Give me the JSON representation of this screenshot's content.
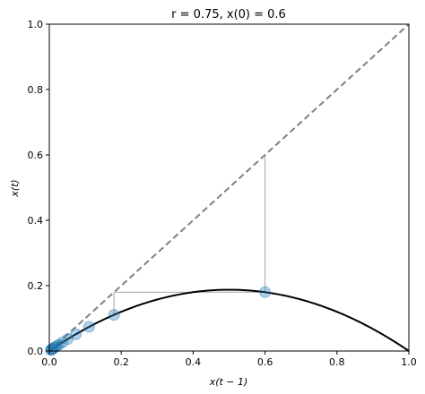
{
  "chart_data": {
    "type": "line",
    "title": "r = 0.75, x(0) = 0.6",
    "xlabel": "x(t − 1)",
    "ylabel": "x(t)",
    "xlim": [
      0,
      1
    ],
    "ylim": [
      0,
      1
    ],
    "x_ticks": [
      "0.0",
      "0.2",
      "0.4",
      "0.6",
      "0.8",
      "1.0"
    ],
    "y_ticks": [
      "0.0",
      "0.2",
      "0.4",
      "0.6",
      "0.8",
      "1.0"
    ],
    "x0": 0.6,
    "r": 0.75,
    "series": [
      {
        "type": "line",
        "style": "dashed",
        "color": "#808080",
        "x": [
          0,
          1
        ],
        "y": [
          0,
          1
        ]
      },
      {
        "type": "line",
        "style": "solid",
        "color": "#000000",
        "function": "r*x*(1-x)",
        "x_range": [
          0,
          1
        ]
      },
      {
        "type": "scatter",
        "color": "#1f77b4",
        "x": [
          0.6,
          0.18,
          0.1107,
          0.0739,
          0.0513,
          0.0365,
          0.0264,
          0.0193,
          0.0142,
          0.0105,
          0.0078,
          0.0058,
          0.0043
        ],
        "y": [
          0.18,
          0.1107,
          0.0739,
          0.0513,
          0.0365,
          0.0264,
          0.0193,
          0.0142,
          0.0105,
          0.0078,
          0.0058,
          0.0043,
          0.0032
        ]
      },
      {
        "type": "cobweb",
        "color": "#b0b0b0",
        "points": [
          [
            0.6,
            0.6
          ],
          [
            0.6,
            0.18
          ],
          [
            0.18,
            0.18
          ],
          [
            0.18,
            0.1107
          ]
        ]
      }
    ],
    "grid": false
  }
}
